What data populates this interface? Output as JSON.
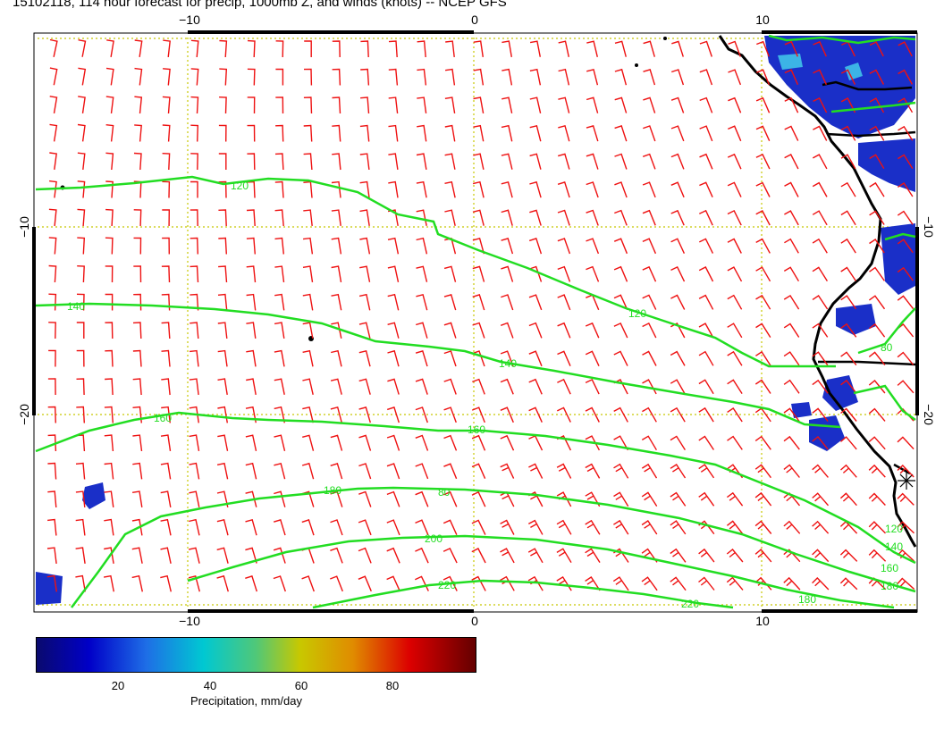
{
  "title": "15102118, 114 hour forecast for precip, 1000mb Z, and winds (knots) -- NCEP GFS",
  "axes": {
    "top_ticks": [
      "−10",
      "0",
      "10"
    ],
    "bottom_ticks": [
      "−10",
      "0",
      "10"
    ],
    "left_ticks": [
      "−10",
      "−20"
    ],
    "right_ticks": [
      "−10",
      "−20"
    ]
  },
  "contour_labels": [
    "120",
    "120",
    "140",
    "140",
    "160",
    "160",
    "180",
    "180",
    "200",
    "220",
    "220",
    "120",
    "140",
    "160",
    "180",
    "80",
    "80"
  ],
  "colorbar": {
    "ticks": [
      "20",
      "40",
      "60",
      "80"
    ],
    "label": "Precipitation, mm/day"
  },
  "colors": {
    "contour": "#22dd22",
    "barb": "#ee1111",
    "grid": "#c8c800",
    "coast": "#000000",
    "precip": "#1a2fc8"
  }
}
